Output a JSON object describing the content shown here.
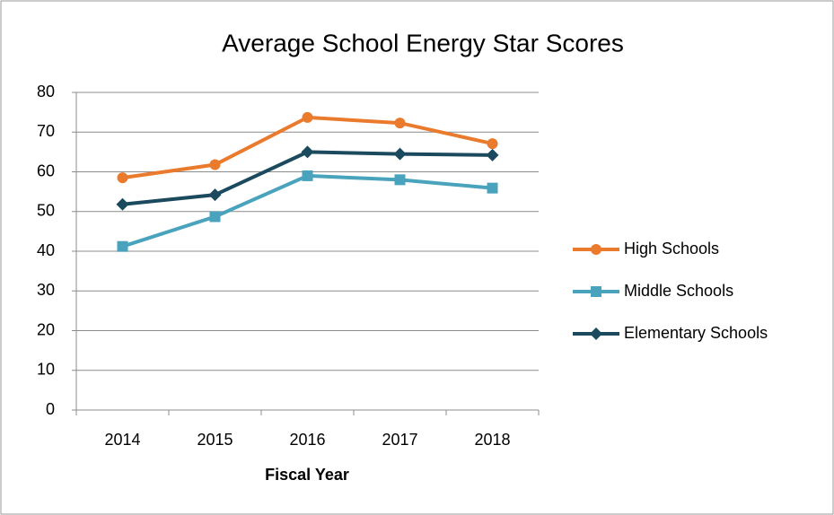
{
  "chart_data": {
    "type": "line",
    "title": "Average School Energy Star Scores",
    "x_label": "Fiscal Year",
    "categories": [
      "2014",
      "2015",
      "2016",
      "2017",
      "2018"
    ],
    "series": [
      {
        "name": "High Schools",
        "color": "#ea7a2c",
        "marker": "circle",
        "values": [
          58.5,
          61.8,
          73.7,
          72.3,
          67.1
        ]
      },
      {
        "name": "Middle Schools",
        "color": "#4aa3bd",
        "marker": "square",
        "values": [
          41.2,
          48.7,
          59.0,
          58.0,
          55.9
        ]
      },
      {
        "name": "Elementary Schools",
        "color": "#1b4a5e",
        "marker": "diamond",
        "values": [
          51.8,
          54.2,
          65.0,
          64.5,
          64.2
        ]
      }
    ],
    "ylim": [
      0,
      80
    ],
    "yticks": [
      0,
      10,
      20,
      30,
      40,
      50,
      60,
      70,
      80
    ],
    "grid": true,
    "legend": "right"
  }
}
